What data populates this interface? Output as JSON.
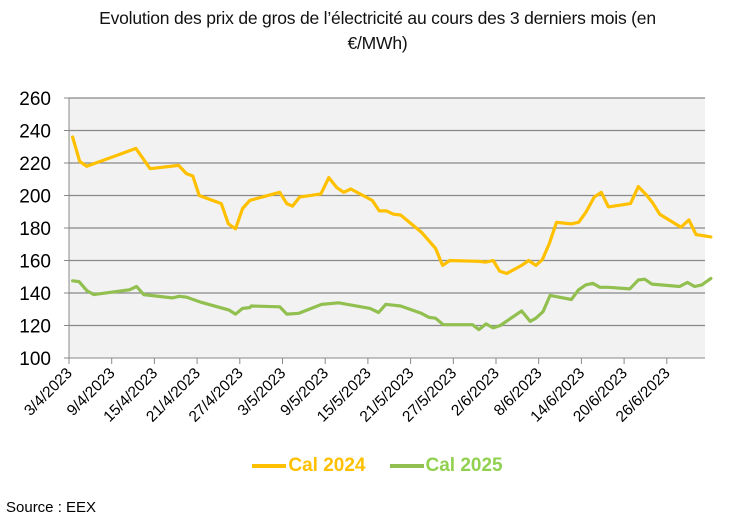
{
  "title": "Evolution des prix de gros de l’électricité au cours des 3 derniers mois (en €/MWh)",
  "title_line1": "Evolution des prix de gros de l’électricité au cours des 3 derniers mois (en",
  "title_line2": "€/MWh)",
  "source": "Source : EEX",
  "colors": {
    "cal2024": "#FFC000",
    "cal2025": "#92C050",
    "cal2025_legend": "#92D050",
    "plot_bg": "#F2F2F2",
    "grid": "#888888"
  },
  "legend": [
    {
      "label": "Cal 2024",
      "color": "#FFC000"
    },
    {
      "label": "Cal 2025",
      "color": "#92D050"
    }
  ],
  "chart_data": {
    "type": "line",
    "title": "Evolution des prix de gros de l’électricité au cours des 3 derniers mois (en €/MWh)",
    "xlabel": "",
    "ylabel": "",
    "ylim": [
      100,
      260
    ],
    "yticks": [
      100,
      120,
      140,
      160,
      180,
      200,
      220,
      240,
      260
    ],
    "grid": true,
    "legend_position": "bottom",
    "x_tick_labels": [
      "3/4/2023",
      "9/4/2023",
      "15/4/2023",
      "21/4/2023",
      "27/4/2023",
      "3/5/2023",
      "9/5/2023",
      "15/5/2023",
      "21/5/2023",
      "27/5/2023",
      "2/6/2023",
      "8/6/2023",
      "14/6/2023",
      "20/6/2023",
      "26/6/2023"
    ],
    "x_range_days": [
      0,
      89
    ],
    "series": [
      {
        "name": "Cal 2024",
        "color": "#FFC000",
        "points": [
          [
            0.5,
            236
          ],
          [
            1.5,
            221
          ],
          [
            2.5,
            218
          ],
          [
            9.4,
            229
          ],
          [
            11.4,
            216.5
          ],
          [
            15.4,
            218.5
          ],
          [
            16.5,
            213.5
          ],
          [
            17.4,
            212
          ],
          [
            18.3,
            200
          ],
          [
            21.4,
            195
          ],
          [
            22.4,
            182.5
          ],
          [
            23.4,
            179.5
          ],
          [
            24.4,
            192
          ],
          [
            25.4,
            197
          ],
          [
            29.6,
            202
          ],
          [
            30.6,
            195
          ],
          [
            31.4,
            193.5
          ],
          [
            32.4,
            199
          ],
          [
            35.4,
            201
          ],
          [
            36.5,
            211
          ],
          [
            37.6,
            205
          ],
          [
            38.6,
            202
          ],
          [
            39.6,
            204
          ],
          [
            42.6,
            197
          ],
          [
            43.6,
            190.5
          ],
          [
            44.6,
            190.5
          ],
          [
            45.6,
            188.5
          ],
          [
            46.6,
            188
          ],
          [
            49.5,
            177.5
          ],
          [
            51.5,
            167.5
          ],
          [
            52.5,
            157
          ],
          [
            53.5,
            160
          ],
          [
            57.5,
            159.5
          ],
          [
            58.6,
            159
          ],
          [
            59.6,
            160
          ],
          [
            60.5,
            153.5
          ],
          [
            61.5,
            152
          ],
          [
            63.6,
            157
          ],
          [
            64.6,
            160
          ],
          [
            65.6,
            157
          ],
          [
            66.5,
            160.5
          ],
          [
            67.5,
            170.5
          ],
          [
            68.5,
            183.5
          ],
          [
            70.5,
            182.5
          ],
          [
            71.6,
            183.5
          ],
          [
            72.6,
            189.5
          ],
          [
            73.8,
            199
          ],
          [
            74.8,
            202
          ],
          [
            75.8,
            193
          ],
          [
            78.9,
            195
          ],
          [
            80.0,
            205.5
          ],
          [
            81.1,
            200.5
          ],
          [
            82.0,
            195.5
          ],
          [
            83.0,
            188.5
          ],
          [
            86.0,
            180.5
          ],
          [
            87.1,
            185
          ],
          [
            88.1,
            176
          ],
          [
            90.2,
            174.5
          ]
        ]
      },
      {
        "name": "Cal 2025",
        "color": "#92C050",
        "points": [
          [
            0.5,
            147.5
          ],
          [
            1.4,
            147
          ],
          [
            2.5,
            141.5
          ],
          [
            3.5,
            139
          ],
          [
            8.5,
            142
          ],
          [
            9.5,
            144
          ],
          [
            10.5,
            139
          ],
          [
            14.5,
            137
          ],
          [
            15.5,
            138
          ],
          [
            16.5,
            137.5
          ],
          [
            18.4,
            134.5
          ],
          [
            22.5,
            129.5
          ],
          [
            23.4,
            127
          ],
          [
            24.4,
            130.5
          ],
          [
            25.4,
            131
          ],
          [
            25.6,
            132
          ],
          [
            29.6,
            131.5
          ],
          [
            30.6,
            127
          ],
          [
            32.3,
            127.5
          ],
          [
            35.5,
            133
          ],
          [
            37.9,
            134
          ],
          [
            42.3,
            130.5
          ],
          [
            43.5,
            128
          ],
          [
            44.5,
            133
          ],
          [
            45.6,
            132.5
          ],
          [
            46.6,
            132
          ],
          [
            49.5,
            127.5
          ],
          [
            50.6,
            125
          ],
          [
            51.5,
            124.5
          ],
          [
            52.6,
            120.5
          ],
          [
            56.7,
            120.5
          ],
          [
            57.6,
            117.5
          ],
          [
            58.6,
            121
          ],
          [
            59.6,
            118.5
          ],
          [
            60.6,
            120
          ],
          [
            63.6,
            129
          ],
          [
            64.8,
            122.5
          ],
          [
            65.6,
            124.5
          ],
          [
            66.6,
            128.5
          ],
          [
            67.6,
            138.5
          ],
          [
            70.6,
            136
          ],
          [
            71.6,
            142
          ],
          [
            72.6,
            145
          ],
          [
            73.6,
            146
          ],
          [
            74.6,
            143.5
          ],
          [
            75.8,
            143.5
          ],
          [
            78.8,
            142.5
          ],
          [
            80.0,
            148
          ],
          [
            80.9,
            148.5
          ],
          [
            81.9,
            145.5
          ],
          [
            85.8,
            144
          ],
          [
            86.9,
            146.5
          ],
          [
            87.9,
            144
          ],
          [
            88.9,
            145
          ],
          [
            90.2,
            149
          ]
        ]
      }
    ]
  }
}
